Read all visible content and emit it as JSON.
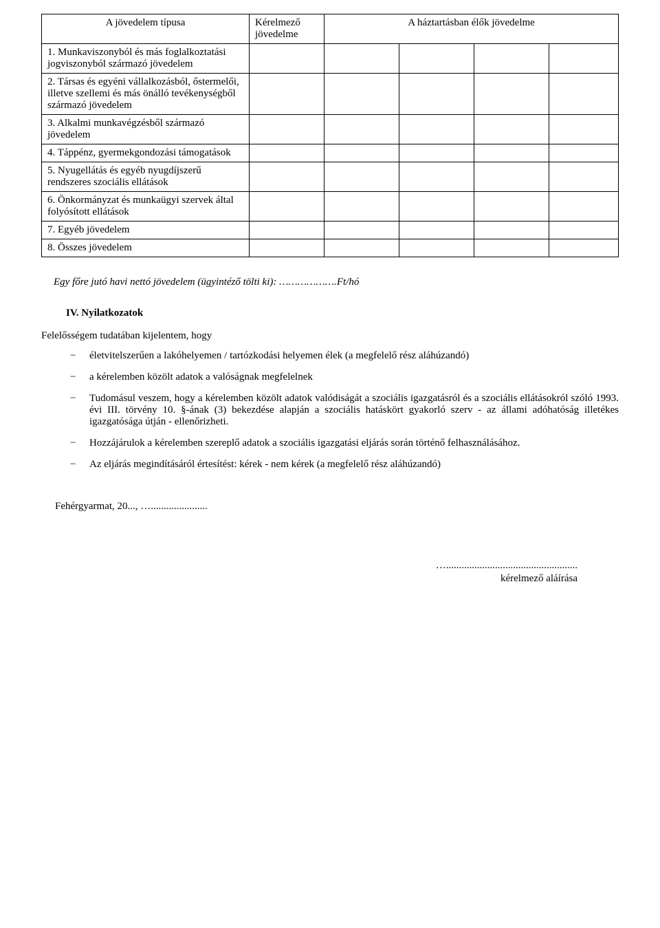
{
  "table": {
    "headers": {
      "type": "A jövedelem típusa",
      "requester": "Kérelmező jövedelme",
      "household": "A háztartásban élők jövedelme"
    },
    "rows": [
      "1. Munkaviszonyból és más foglalkoztatási jogviszonyból származó jövedelem",
      "2. Társas és egyéni vállalkozásból, őstermelői, illetve szellemi és más önálló tevékenységből származó jövedelem",
      "3. Alkalmi munkavégzésből származó jövedelem",
      "4. Táppénz, gyermekgondozási támogatások",
      "5. Nyugellátás és egyéb nyugdíjszerű rendszeres szociális ellátások",
      "6. Önkormányzat és munkaügyi szervek által folyósított ellátások",
      "7. Egyéb jövedelem",
      "8. Összes jövedelem"
    ]
  },
  "perCapita": "Egy főre jutó havi nettó jövedelem (ügyintéző tölti ki): ……………….Ft/hó",
  "sectionIV": "IV. Nyilatkozatok",
  "declLead": "Felelősségem tudatában kijelentem, hogy",
  "declarations": [
    "életvitelszerűen a lakóhelyemen / tartózkodási helyemen élek (a megfelelő rész aláhúzandó)",
    "a kérelemben közölt adatok a valóságnak megfelelnek",
    "Tudomásul veszem, hogy a kérelemben közölt adatok valódiságát a szociális igazgatásról és a szociális ellátásokról szóló 1993. évi III. törvény 10. §-ának (3) bekezdése alapján a szociális hatáskört gyakorló szerv - az állami adóhatóság illetékes igazgatósága útján - ellenőrizheti.",
    "Hozzájárulok a kérelemben szereplő adatok a szociális igazgatási eljárás során történő felhasználásához.",
    "Az eljárás megindításáról értesítést:   kérek    -     nem kérek  (a megfelelő rész aláhúzandó)"
  ],
  "dateLine": "Fehérgyarmat, 20..., …......................",
  "signature": {
    "dots": "…...................................................",
    "label": "kérelmező aláírása"
  }
}
